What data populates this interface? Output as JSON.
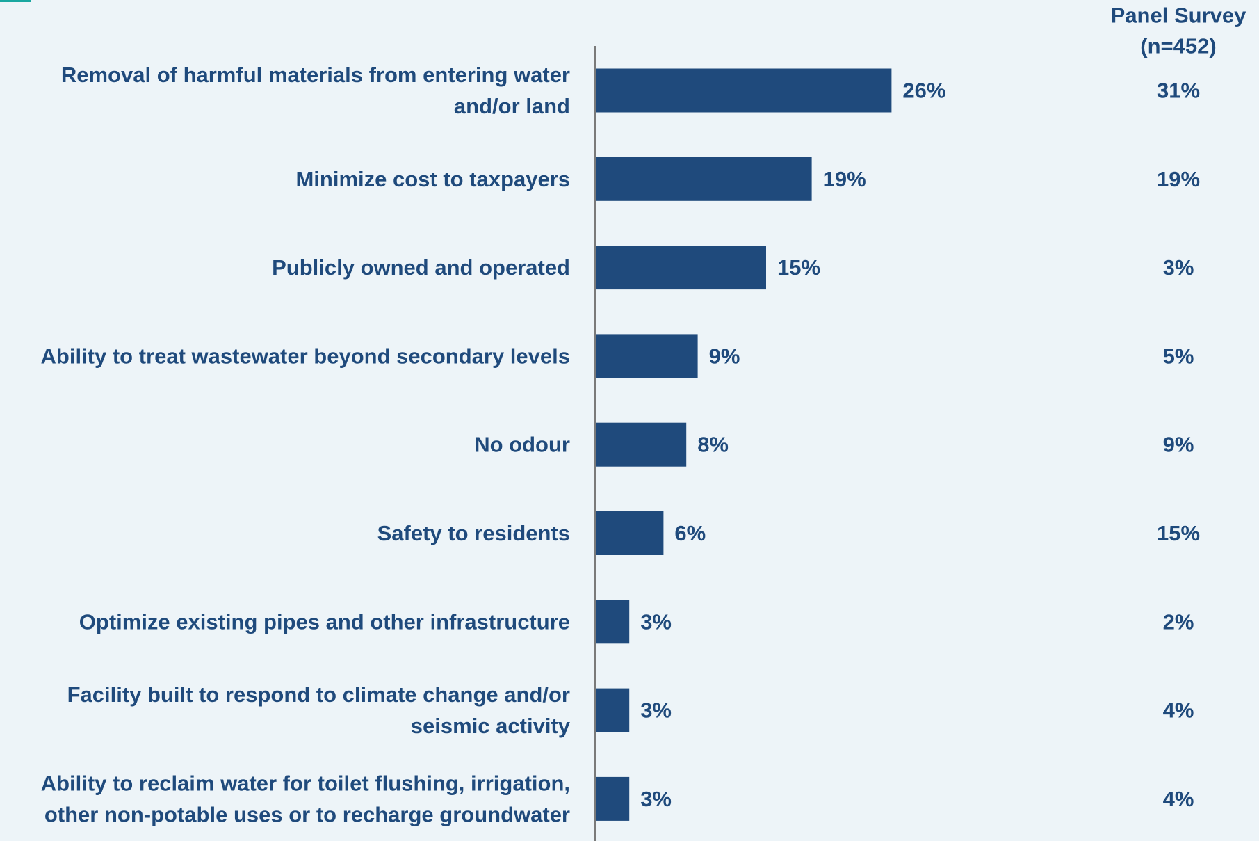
{
  "chart_data": {
    "type": "bar",
    "orientation": "horizontal",
    "categories": [
      "Removal of harmful materials from entering water and/or land",
      "Minimize cost to taxpayers",
      "Publicly owned and operated",
      "Ability to treat wastewater beyond secondary levels",
      "No odour",
      "Safety to residents",
      "Optimize existing pipes and other infrastructure",
      "Facility built to respond to climate change and/or seismic activity",
      "Ability to reclaim water for toilet flushing, irrigation, other non-potable uses or to recharge groundwater"
    ],
    "category_lines": [
      [
        "Removal of harmful materials from entering water",
        "and/or land"
      ],
      [
        "Minimize cost to taxpayers"
      ],
      [
        "Publicly owned and operated"
      ],
      [
        "Ability to treat wastewater beyond secondary levels"
      ],
      [
        "No odour"
      ],
      [
        "Safety to residents"
      ],
      [
        "Optimize existing pipes and other infrastructure"
      ],
      [
        "Facility built to respond to climate change and/or",
        "seismic activity"
      ],
      [
        "Ability to reclaim water for toilet flushing, irrigation,",
        "other non-potable uses or to recharge groundwater"
      ]
    ],
    "values": [
      26,
      19,
      15,
      9,
      8,
      6,
      3,
      3,
      3
    ],
    "value_labels": [
      "26%",
      "19%",
      "15%",
      "9%",
      "8%",
      "6%",
      "3%",
      "3%",
      "3%"
    ],
    "panel_survey": {
      "header": [
        "Panel Survey",
        "(n=452)"
      ],
      "values": [
        31,
        19,
        3,
        5,
        9,
        15,
        2,
        4,
        4
      ],
      "labels": [
        "31%",
        "19%",
        "3%",
        "5%",
        "9%",
        "15%",
        "2%",
        "4%",
        "4%"
      ]
    },
    "unit": "%",
    "xlim": [
      0,
      26
    ],
    "grid": false,
    "bar_color": "#1f4a7c",
    "text_color": "#1f4a7c",
    "axis_color": "#7a7a7a",
    "background": "#edf4f8",
    "accent_color": "#1aa7a0"
  }
}
